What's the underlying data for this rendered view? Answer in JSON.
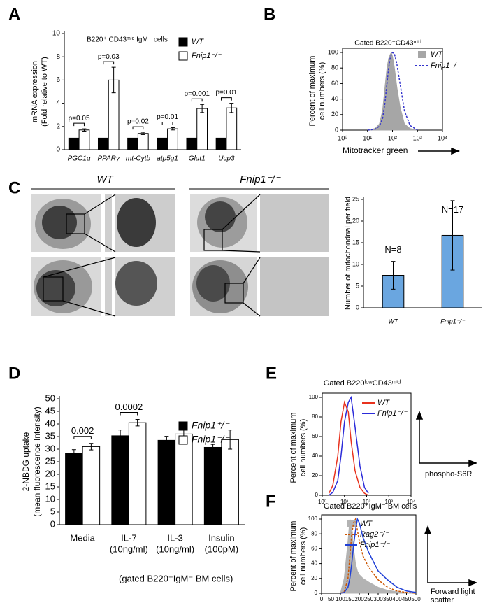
{
  "chart_data": [
    {
      "panel": "A",
      "type": "bar",
      "title": "B220⁺ CD43ᵐⁱᵈ IgM⁻ cells",
      "ylabel": [
        "mRNA expression",
        "(Fold relative to WT)"
      ],
      "categories": [
        "PGC1α",
        "PPARγ",
        "mt-Cytb",
        "atp5g1",
        "Glut1",
        "Ucp3"
      ],
      "series": [
        {
          "name": "WT",
          "color": "#000000",
          "values": [
            1,
            1,
            1,
            1,
            1,
            1
          ]
        },
        {
          "name": "Fnip1⁻/⁻",
          "color": "#ffffff",
          "values": [
            1.7,
            6.0,
            1.4,
            1.8,
            3.55,
            3.6
          ],
          "errors": [
            0.1,
            1.1,
            0.1,
            0.1,
            0.35,
            0.4
          ]
        }
      ],
      "p_values": [
        "p=0.05",
        "p=0.03",
        "p=0.02",
        "p=0.01",
        "p=0.001",
        "p=0.01"
      ],
      "ylim": [
        0,
        10
      ],
      "yticks": [
        0,
        2,
        4,
        6,
        8,
        10
      ]
    },
    {
      "panel": "B",
      "type": "line",
      "title": "Gated B220⁺CD43ᵐⁱᵈ",
      "ylabel": [
        "Percent of maximum",
        "cell numbers (%)"
      ],
      "xlabel": "Mitotracker green",
      "xscale": "log",
      "xlim": [
        1,
        10000
      ],
      "xticks": [
        {
          "value": 1,
          "label": "10⁰"
        },
        {
          "value": 10,
          "label": "10¹"
        },
        {
          "value": 100,
          "label": "10²"
        },
        {
          "value": 1000,
          "label": "10³"
        },
        {
          "value": 10000,
          "label": "10⁴"
        }
      ],
      "ylim": [
        0,
        100
      ],
      "yticks": [
        0,
        20,
        40,
        60,
        80,
        100
      ],
      "x": [
        10,
        20,
        30,
        40,
        50,
        60,
        70,
        80,
        90,
        100,
        120,
        150,
        200,
        300,
        500,
        1000
      ],
      "series": [
        {
          "name": "WT",
          "color": "#a6a6a6",
          "fill": true,
          "values": [
            0,
            2,
            8,
            25,
            55,
            80,
            92,
            97,
            100,
            95,
            80,
            55,
            30,
            8,
            2,
            0
          ]
        },
        {
          "name": "Fnip1⁻/⁻",
          "color": "#3333cc",
          "dash": true,
          "values": [
            0,
            1,
            5,
            15,
            35,
            60,
            80,
            92,
            97,
            100,
            98,
            85,
            60,
            25,
            6,
            0
          ]
        }
      ]
    },
    {
      "panel": "C",
      "type": "bar",
      "image_labels": [
        "WT",
        "Fnip1⁻/⁻"
      ],
      "ylabel": "Number of mitochondrial per field",
      "categories": [
        "WT",
        "Fnip1⁻/⁻"
      ],
      "values": [
        7.5,
        16.7
      ],
      "errors": [
        3.2,
        8.0
      ],
      "color": "#6aa6e0",
      "annotations": [
        "N=8",
        "N=17"
      ],
      "ylim": [
        0,
        25
      ],
      "yticks": [
        0,
        5,
        10,
        15,
        20,
        25
      ]
    },
    {
      "panel": "D",
      "type": "bar",
      "ylabel": [
        "2-NBDG  uptake",
        "(mean fluorescence Intensity)"
      ],
      "xlabel": "(gated B220⁺IgM⁻ BM cells)",
      "categories": [
        [
          "Media"
        ],
        [
          "IL-7",
          "(10ng/ml)"
        ],
        [
          "IL-3",
          "(10ng/ml)"
        ],
        [
          "Insulin",
          "(100pM)"
        ]
      ],
      "series": [
        {
          "name": "Fnip1⁺/⁻",
          "color": "#000000",
          "values": [
            28.3,
            35.3,
            33.5,
            30.7
          ],
          "errors": [
            1.5,
            2.3,
            1.6,
            1.2
          ]
        },
        {
          "name": "Fnip1⁻/⁻",
          "color": "#ffffff",
          "values": [
            31.0,
            40.5,
            36.0,
            33.8
          ],
          "errors": [
            1.3,
            1.3,
            2.3,
            3.8
          ]
        }
      ],
      "p_values": [
        "0.002",
        "0.0002",
        null,
        null
      ],
      "ylim": [
        0,
        50
      ],
      "yticks": [
        0,
        5,
        10,
        15,
        20,
        25,
        30,
        35,
        40,
        45,
        50
      ]
    },
    {
      "panel": "E",
      "type": "line",
      "title": "Gated B220ˡᵒʷCD43ᵐⁱᵈ",
      "ylabel": [
        "Percent of maximum",
        "cell numbers (%)"
      ],
      "xlabel": "phospho-S6R",
      "xscale": "log",
      "xlim": [
        1,
        10000
      ],
      "xticks": [
        {
          "value": 1,
          "label": "10⁰"
        },
        {
          "value": 10,
          "label": "10¹"
        },
        {
          "value": 100,
          "label": "10²"
        },
        {
          "value": 1000,
          "label": "10³"
        },
        {
          "value": 10000,
          "label": "10⁴"
        }
      ],
      "ylim": [
        0,
        100
      ],
      "yticks": [
        0,
        20,
        40,
        60,
        80,
        100
      ],
      "x": [
        2,
        3,
        5,
        7,
        10,
        15,
        20,
        30,
        50,
        80,
        120
      ],
      "series": [
        {
          "name": "WT",
          "color": "#e8321e",
          "values": [
            2,
            10,
            40,
            75,
            95,
            85,
            55,
            25,
            8,
            2,
            0
          ]
        },
        {
          "name": "Fnip1⁻/⁻",
          "color": "#2b2bd9",
          "values": [
            0,
            3,
            15,
            40,
            75,
            95,
            100,
            70,
            30,
            8,
            2
          ]
        }
      ]
    },
    {
      "panel": "F",
      "type": "line",
      "title": "Gated B220⁺IgM⁻ BM cells",
      "ylabel": [
        "Percent of maximum",
        "cell numbers (%)"
      ],
      "xlabel": [
        "Forward light",
        "scatter"
      ],
      "xlim": [
        0,
        500
      ],
      "xticks": [
        0,
        50,
        100,
        150,
        200,
        250,
        300,
        350,
        400,
        450,
        500
      ],
      "ylim": [
        0,
        100
      ],
      "yticks": [
        0,
        20,
        40,
        60,
        80,
        100
      ],
      "x": [
        100,
        120,
        140,
        150,
        160,
        170,
        180,
        190,
        200,
        220,
        250,
        300,
        350,
        400,
        450,
        500
      ],
      "series": [
        {
          "name": "WT",
          "color": "#b3b3b3",
          "fill": true,
          "values": [
            0,
            20,
            70,
            100,
            90,
            60,
            40,
            30,
            25,
            20,
            15,
            8,
            4,
            2,
            1,
            0
          ]
        },
        {
          "name": "Rag2⁻/⁻",
          "color": "#cc5500",
          "dash": true,
          "values": [
            0,
            2,
            20,
            50,
            80,
            95,
            100,
            85,
            70,
            50,
            35,
            18,
            8,
            3,
            1,
            0
          ]
        },
        {
          "name": "Fnip1⁻/⁻",
          "color": "#1f3fd6",
          "values": [
            0,
            1,
            8,
            20,
            40,
            65,
            85,
            100,
            95,
            75,
            55,
            30,
            18,
            8,
            3,
            1
          ]
        }
      ]
    }
  ]
}
